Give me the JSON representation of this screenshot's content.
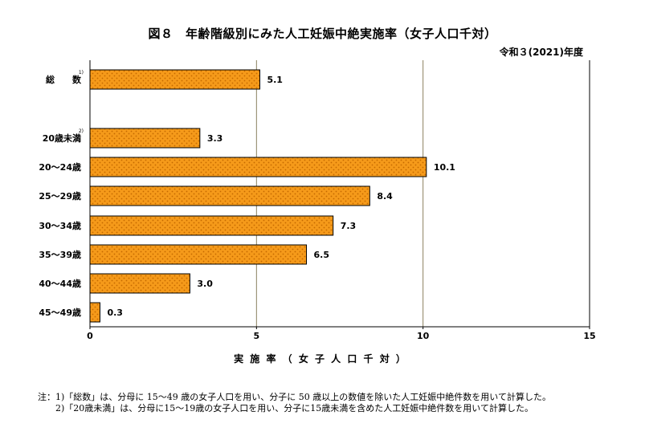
{
  "title": "図８　年齢階級別にみた人工妊娠中絶実施率（女子人口千対）",
  "year_label": "令和３(2021)年度",
  "chart_data": {
    "type": "bar",
    "orientation": "horizontal",
    "categories": [
      "総　　数",
      "20歳未満",
      "20～24歳",
      "25～29歳",
      "30～34歳",
      "35～39歳",
      "40～44歳",
      "45～49歳"
    ],
    "category_superscripts": [
      "1)",
      "2)",
      "",
      "",
      "",
      "",
      "",
      ""
    ],
    "values": [
      5.1,
      3.3,
      10.1,
      8.4,
      7.3,
      6.5,
      3.0,
      0.3
    ],
    "value_labels": [
      "5.1",
      "3.3",
      "10.1",
      "8.4",
      "7.3",
      "6.5",
      "3.0",
      "0.3"
    ],
    "xlabel": "実 施 率 （ 女 子 人 口 千 対 ）",
    "xlim": [
      0,
      15
    ],
    "xticks": [
      0,
      5,
      10,
      15
    ],
    "grid": "vertical",
    "bar_color": "#f59a1a",
    "bar_pattern_color": "#c56a00",
    "grid_color": "#8a8060"
  },
  "notes": {
    "lead1": "注：1)",
    "text1": "「総数」は、分母に 15～49 歳の女子人口を用い、分子に 50 歳以上の数値を除いた人工妊娠中絶件数を用いて計算した。",
    "lead2": "　　2)",
    "text2": "「20歳未満」は、分母に15～19歳の女子人口を用い、分子に15歳未満を含めた人工妊娠中絶件数を用いて計算した。"
  }
}
